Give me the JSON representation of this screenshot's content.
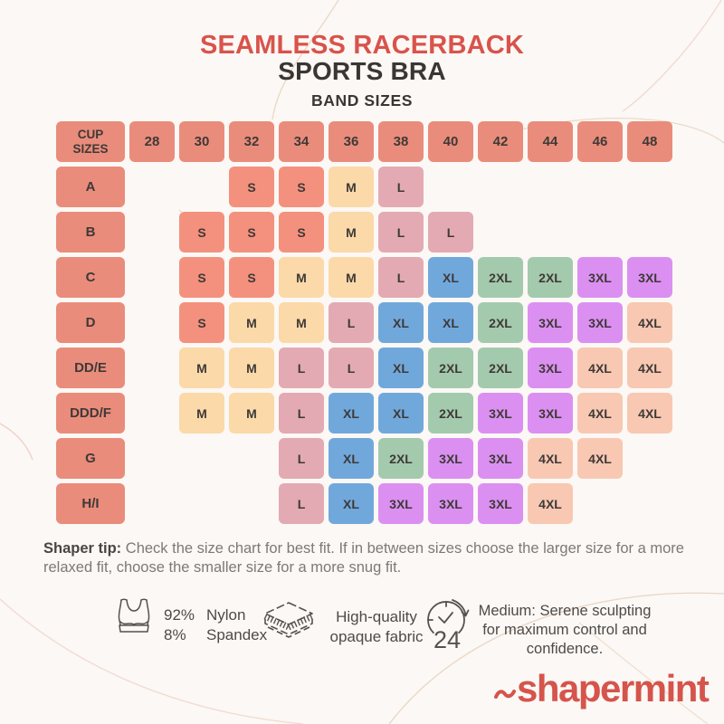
{
  "page": {
    "background": "#FBF8F5",
    "accent": "#D9534B",
    "text_dark": "#3A3633",
    "text_gray": "#7D7975"
  },
  "header": {
    "title_line1": "SEAMLESS RACERBACK",
    "title_line2": "SPORTS BRA",
    "subtitle": "BAND SIZES"
  },
  "chart_data": {
    "type": "table",
    "title": "Seamless Racerback Sports Bra - Band Sizes",
    "corner_label_lines": [
      "CUP",
      "SIZES"
    ],
    "band_sizes": [
      "28",
      "30",
      "32",
      "34",
      "36",
      "38",
      "40",
      "42",
      "44",
      "46",
      "48"
    ],
    "rows": [
      {
        "cup": "A",
        "sizes": [
          "",
          "",
          "S",
          "S",
          "M",
          "L",
          "",
          "",
          "",
          "",
          ""
        ]
      },
      {
        "cup": "B",
        "sizes": [
          "",
          "S",
          "S",
          "S",
          "M",
          "L",
          "L",
          "",
          "",
          "",
          ""
        ]
      },
      {
        "cup": "C",
        "sizes": [
          "",
          "S",
          "S",
          "M",
          "M",
          "L",
          "XL",
          "2XL",
          "2XL",
          "3XL",
          "3XL"
        ]
      },
      {
        "cup": "D",
        "sizes": [
          "",
          "S",
          "M",
          "M",
          "L",
          "XL",
          "XL",
          "2XL",
          "3XL",
          "3XL",
          "4XL"
        ]
      },
      {
        "cup": "DD/E",
        "sizes": [
          "",
          "M",
          "M",
          "L",
          "L",
          "XL",
          "2XL",
          "2XL",
          "3XL",
          "4XL",
          "4XL"
        ]
      },
      {
        "cup": "DDD/F",
        "sizes": [
          "",
          "M",
          "M",
          "L",
          "XL",
          "XL",
          "2XL",
          "3XL",
          "3XL",
          "4XL",
          "4XL"
        ]
      },
      {
        "cup": "G",
        "sizes": [
          "",
          "",
          "",
          "L",
          "XL",
          "2XL",
          "3XL",
          "3XL",
          "4XL",
          "4XL",
          ""
        ]
      },
      {
        "cup": "H/I",
        "sizes": [
          "",
          "",
          "",
          "L",
          "XL",
          "3XL",
          "3XL",
          "3XL",
          "4XL",
          "",
          ""
        ]
      }
    ],
    "size_colors": {
      "S": "#F4917E",
      "M": "#FBD9A9",
      "L": "#E3AAB3",
      "XL": "#71A8DC",
      "2XL": "#A4CAAD",
      "3XL": "#DB90F1",
      "4XL": "#F8C8B2"
    },
    "header_cell_color": "#EA8C7B",
    "cell_text_color": "#3E3937"
  },
  "tip": {
    "label": "Shaper tip:",
    "text": " Check the size chart for best fit. If in between sizes choose the larger size for a more relaxed fit, choose the smaller size for a more snug fit."
  },
  "features": {
    "material": {
      "icon": "bra-icon",
      "percent_lines": [
        "92%",
        "8%"
      ],
      "name_lines": [
        "Nylon",
        "Spandex"
      ]
    },
    "fabric": {
      "icon": "fabric-icon",
      "lines": [
        "High-quality",
        "opaque fabric"
      ]
    },
    "compression": {
      "icon": "24h-clock-icon",
      "clock_number": "24",
      "lines": [
        "Medium: Serene sculpting",
        "for maximum control and",
        "confidence."
      ]
    }
  },
  "logo": {
    "text": "shapermint"
  }
}
